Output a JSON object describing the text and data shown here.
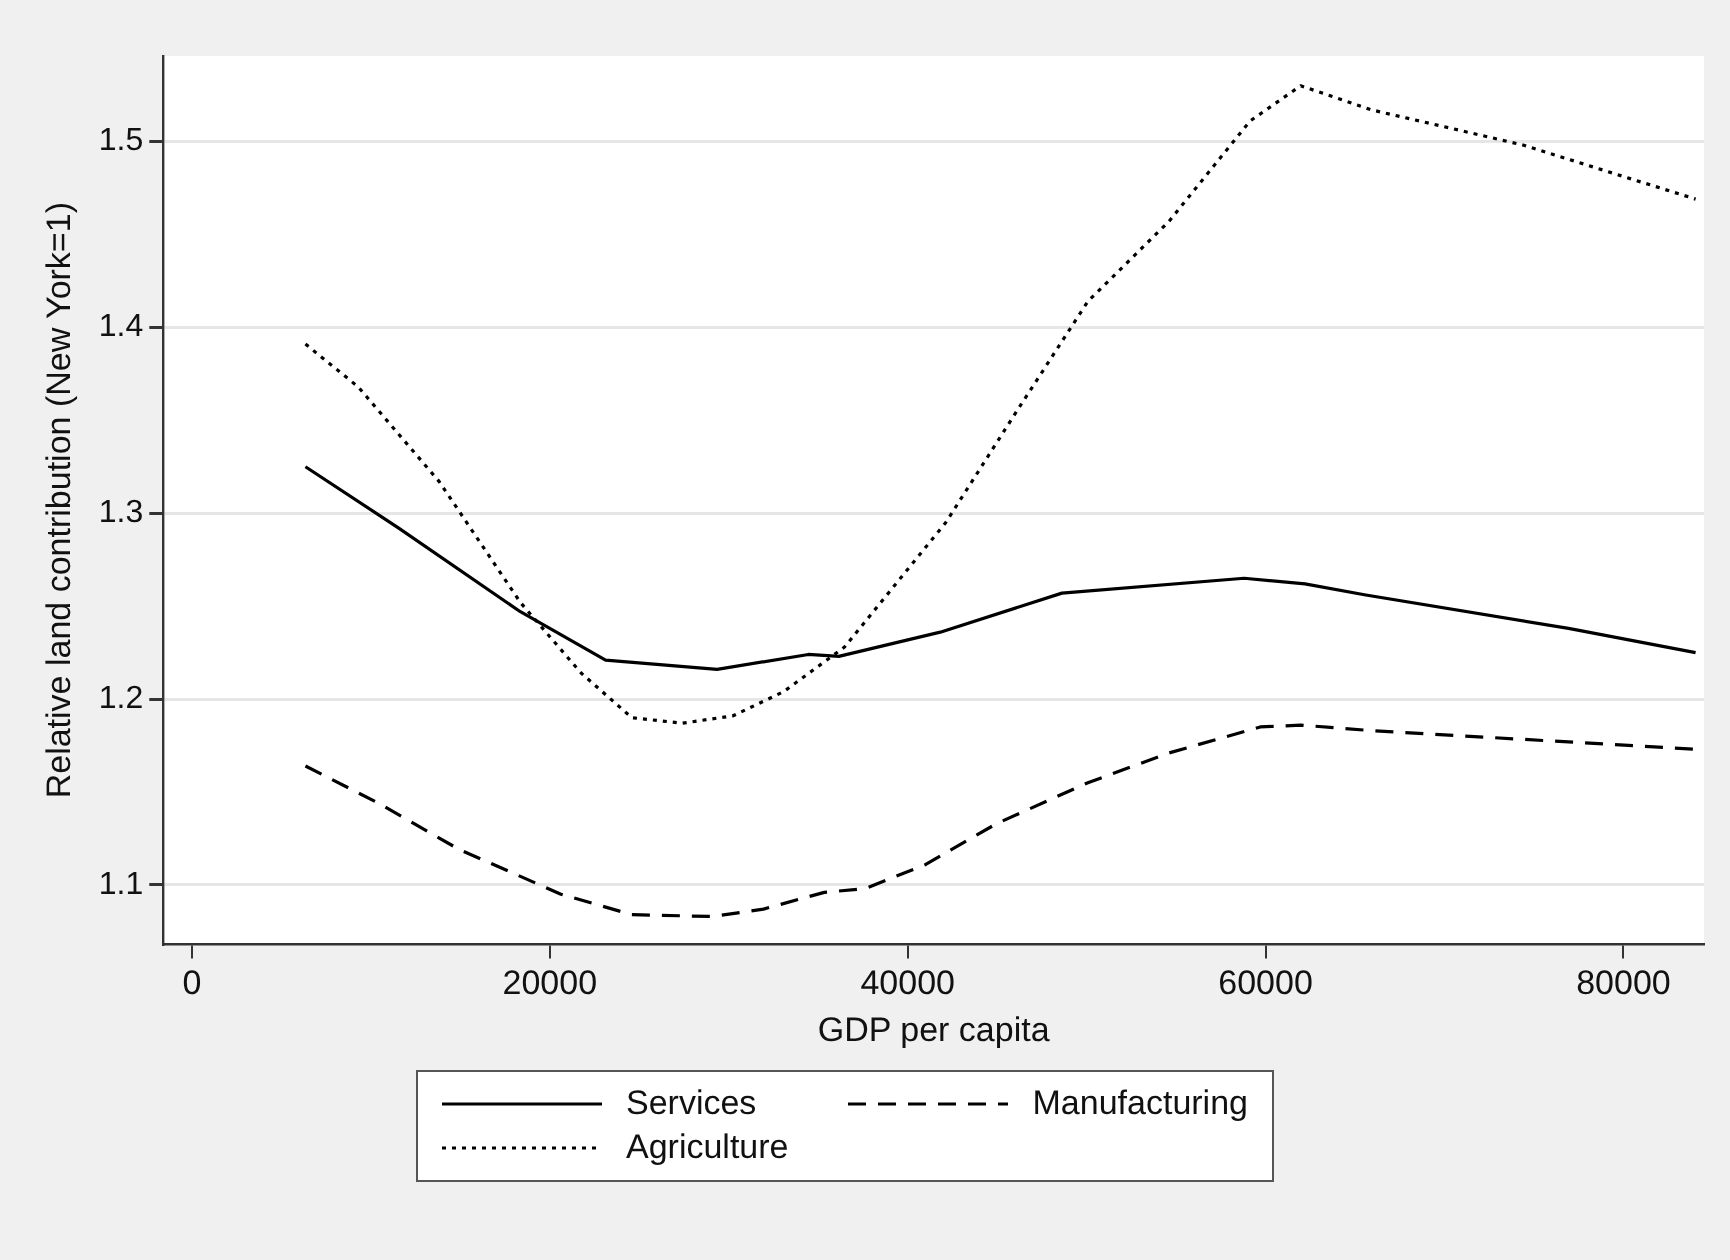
{
  "chart_data": {
    "type": "line",
    "xlabel": "GDP per capita",
    "ylabel": "Relative land contribution (New York=1)",
    "xlim": [
      -1600,
      84500
    ],
    "ylim": [
      1.068,
      1.546
    ],
    "xticks": [
      0,
      20000,
      40000,
      60000,
      80000
    ],
    "yticks": [
      1.1,
      1.2,
      1.3,
      1.4,
      1.5
    ],
    "grid": "y",
    "legend": "bottom",
    "marker": "none",
    "series": [
      {
        "name": "Services",
        "color": "#000000",
        "line_style": "solid",
        "x": [
          6345,
          11557,
          18355,
          23118,
          29350,
          34450,
          36150,
          41820,
          48620,
          58800,
          62200,
          65600,
          76930,
          84030
        ],
        "values": [
          1.325,
          1.292,
          1.247,
          1.221,
          1.216,
          1.224,
          1.223,
          1.236,
          1.257,
          1.265,
          1.262,
          1.256,
          1.238,
          1.225
        ]
      },
      {
        "name": "Manufacturing",
        "color": "#000000",
        "line_style": "dashed",
        "x": [
          6345,
          10420,
          14950,
          20620,
          24580,
          29110,
          31940,
          35340,
          37610,
          41010,
          44970,
          50070,
          54600,
          59700,
          61960,
          65930,
          84030
        ],
        "values": [
          1.164,
          1.144,
          1.119,
          1.095,
          1.084,
          1.083,
          1.087,
          1.096,
          1.098,
          1.111,
          1.133,
          1.155,
          1.171,
          1.185,
          1.186,
          1.183,
          1.173
        ]
      },
      {
        "name": "Agriculture",
        "color": "#000000",
        "line_style": "dotted",
        "x": [
          6345,
          9290,
          13820,
          18355,
          21750,
          24580,
          27410,
          30240,
          33070,
          36470,
          42130,
          46100,
          50070,
          54600,
          59130,
          61960,
          65930,
          74430,
          84030
        ],
        "values": [
          1.391,
          1.368,
          1.317,
          1.252,
          1.214,
          1.19,
          1.187,
          1.191,
          1.204,
          1.228,
          1.295,
          1.355,
          1.414,
          1.457,
          1.511,
          1.53,
          1.517,
          1.498,
          1.469
        ]
      }
    ]
  }
}
